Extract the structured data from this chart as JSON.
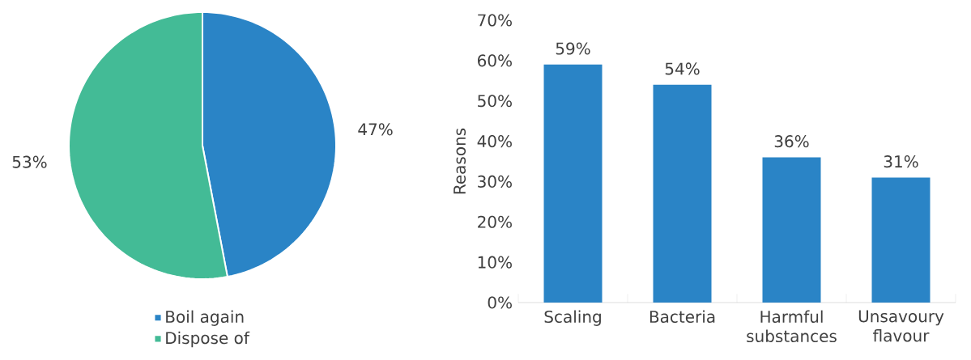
{
  "chart_data": [
    {
      "type": "pie",
      "categories": [
        "Boil again",
        "Dispose of"
      ],
      "values": [
        47,
        53
      ],
      "colors": [
        "#2a84c6",
        "#43bb96"
      ],
      "value_labels": [
        "47%",
        "53%"
      ],
      "legend": "bottom"
    },
    {
      "type": "bar",
      "ylabel": "Reasons",
      "categories": [
        "Scaling",
        "Bacteria",
        "Harmful substances",
        "Unsavoury flavour"
      ],
      "values": [
        59,
        54,
        36,
        31
      ],
      "color": "#2a84c6",
      "value_labels": [
        "59%",
        "54%",
        "36%",
        "31%"
      ],
      "ylim": [
        0,
        70
      ],
      "yticks": [
        {
          "value": 0,
          "label": "0%"
        },
        {
          "value": 10,
          "label": "10%"
        },
        {
          "value": 20,
          "label": "20%"
        },
        {
          "value": 30,
          "label": "30%"
        },
        {
          "value": 40,
          "label": "40%"
        },
        {
          "value": 50,
          "label": "50%"
        },
        {
          "value": 60,
          "label": "60%"
        },
        {
          "value": 70,
          "label": "70%"
        }
      ],
      "grid": false
    }
  ]
}
